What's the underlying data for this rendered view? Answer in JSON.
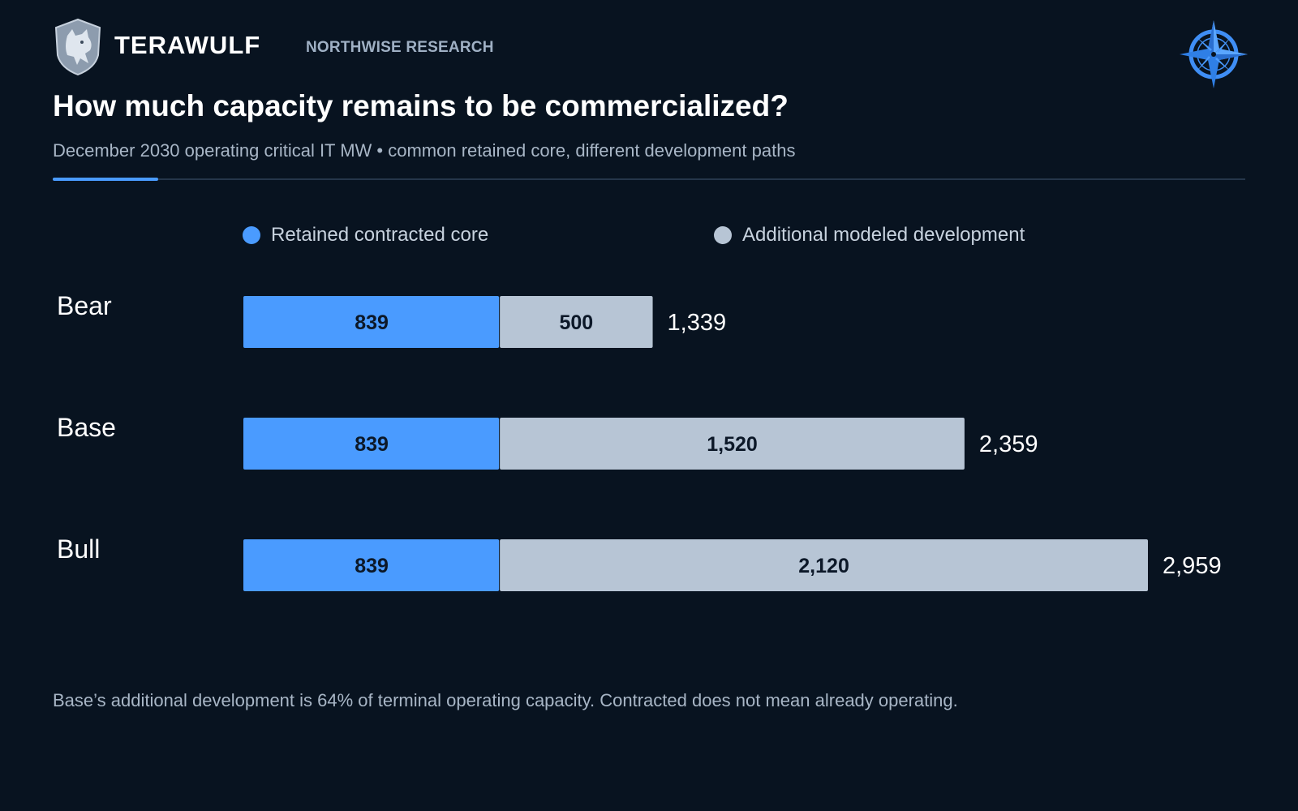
{
  "header": {
    "brand": "TERAWULF",
    "research": "NORTHWISE RESEARCH"
  },
  "title": "How much capacity remains to be commercialized?",
  "subtitle": "December 2030 operating critical IT MW • common retained core, different development paths",
  "footnote": "Base’s additional development is 64% of terminal operating capacity. Contracted does not mean already operating.",
  "colors": {
    "core": "#4a9bff",
    "additional": "#b7c5d5",
    "background": "#081320"
  },
  "chart_data": {
    "type": "bar",
    "orientation": "horizontal",
    "stacked": true,
    "categories": [
      "Bear",
      "Base",
      "Bull"
    ],
    "series": [
      {
        "name": "Retained contracted core",
        "values": [
          839,
          839,
          839
        ],
        "labels": [
          "839",
          "839",
          "839"
        ]
      },
      {
        "name": "Additional modeled development",
        "values": [
          500,
          1520,
          2120
        ],
        "labels": [
          "500",
          "1,520",
          "2,120"
        ]
      }
    ],
    "totals": [
      "1,339",
      "2,359",
      "2,959"
    ],
    "xlim": [
      0,
      2959
    ],
    "grid": false,
    "legend": "top"
  }
}
